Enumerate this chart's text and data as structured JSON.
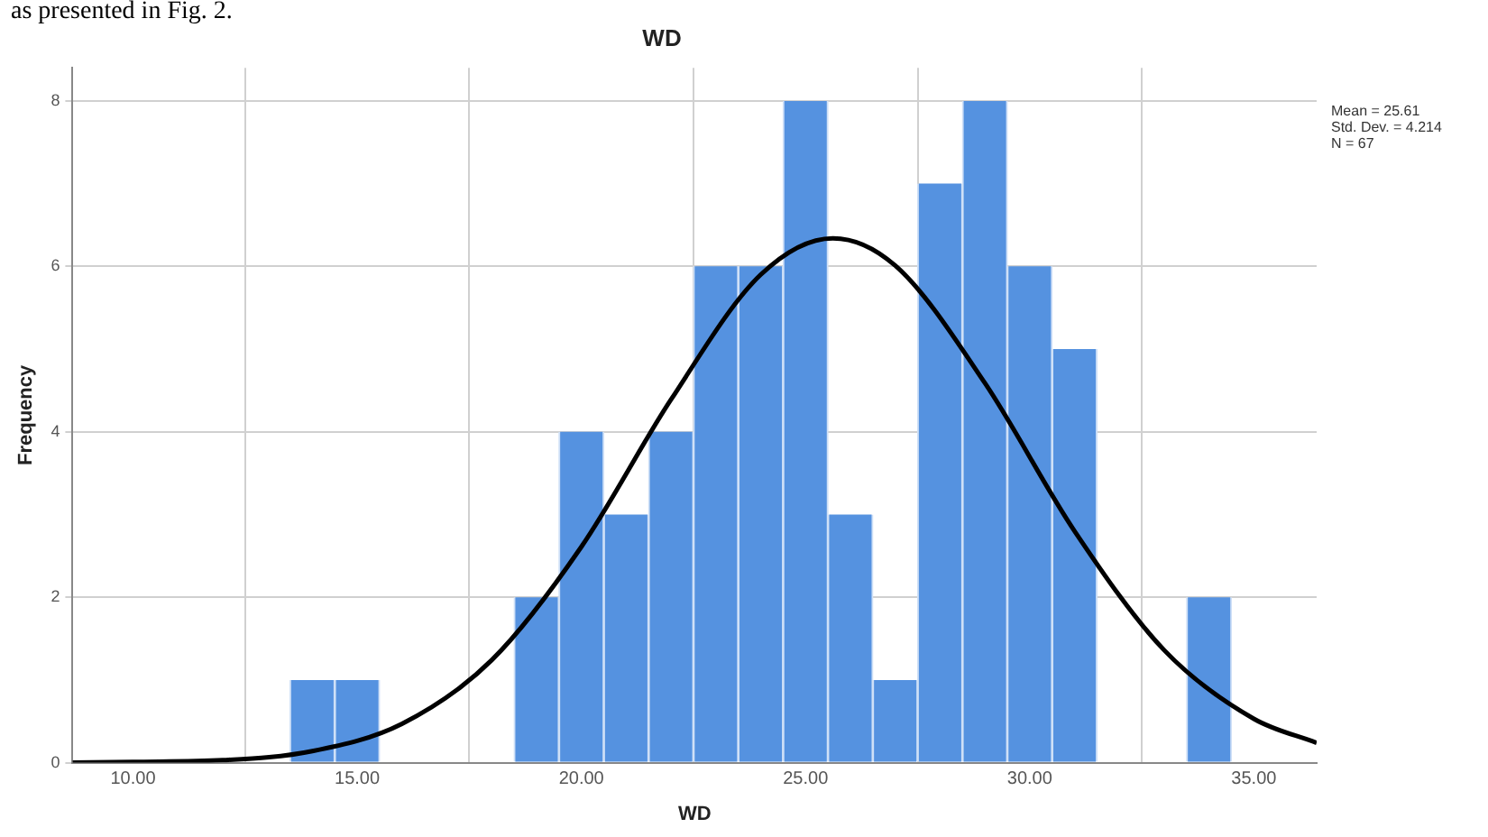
{
  "chart_data": {
    "type": "histogram",
    "title": "WD",
    "xlabel": "WD",
    "ylabel": "Frequency",
    "annotations": [
      "as presented in Fig. 2.",
      "Mean = 25.61",
      "Std. Dev. = 4.214",
      "N = 67"
    ],
    "series": [
      {
        "color": "#5592e0",
        "bins": [
          13.5,
          14.5,
          15.5,
          16.5,
          17.5,
          18.5,
          19.5,
          20.5,
          21.5,
          22.5,
          23.5,
          24.5,
          25.5,
          26.5,
          27.5,
          28.5,
          29.5,
          30.5,
          31.5,
          32.5,
          33.5,
          34.5
        ],
        "values": [
          1,
          1,
          0,
          0,
          0,
          2,
          4,
          3,
          4,
          6,
          6,
          8,
          3,
          1,
          7,
          8,
          6,
          5,
          0,
          0,
          2
        ]
      },
      {
        "type": "line",
        "color": "#000000",
        "x": [
          8.65,
          10,
          12,
          14,
          16,
          18,
          20,
          22,
          24,
          25.61,
          27,
          29,
          31,
          33,
          35,
          36.4
        ],
        "values": [
          0,
          0.01,
          0.03,
          0.14,
          0.47,
          1.24,
          2.61,
          4.39,
          5.9,
          6.34,
          6.01,
          4.59,
          2.8,
          1.36,
          0.53,
          0.24
        ]
      }
    ],
    "xlim": [
      8.65,
      36.4
    ],
    "xticks": [
      {
        "value": 10,
        "label": "10.00"
      },
      {
        "value": 15,
        "label": "15.00"
      },
      {
        "value": 20,
        "label": "20.00"
      },
      {
        "value": 25,
        "label": "25.00"
      },
      {
        "value": 30,
        "label": "30.00"
      },
      {
        "value": 35,
        "label": "35.00"
      }
    ],
    "ylim": [
      0,
      8.4
    ],
    "yticks": [
      0,
      2,
      4,
      6,
      8
    ],
    "grid": true,
    "legend": false,
    "marker": "none",
    "line_style": "solid"
  }
}
